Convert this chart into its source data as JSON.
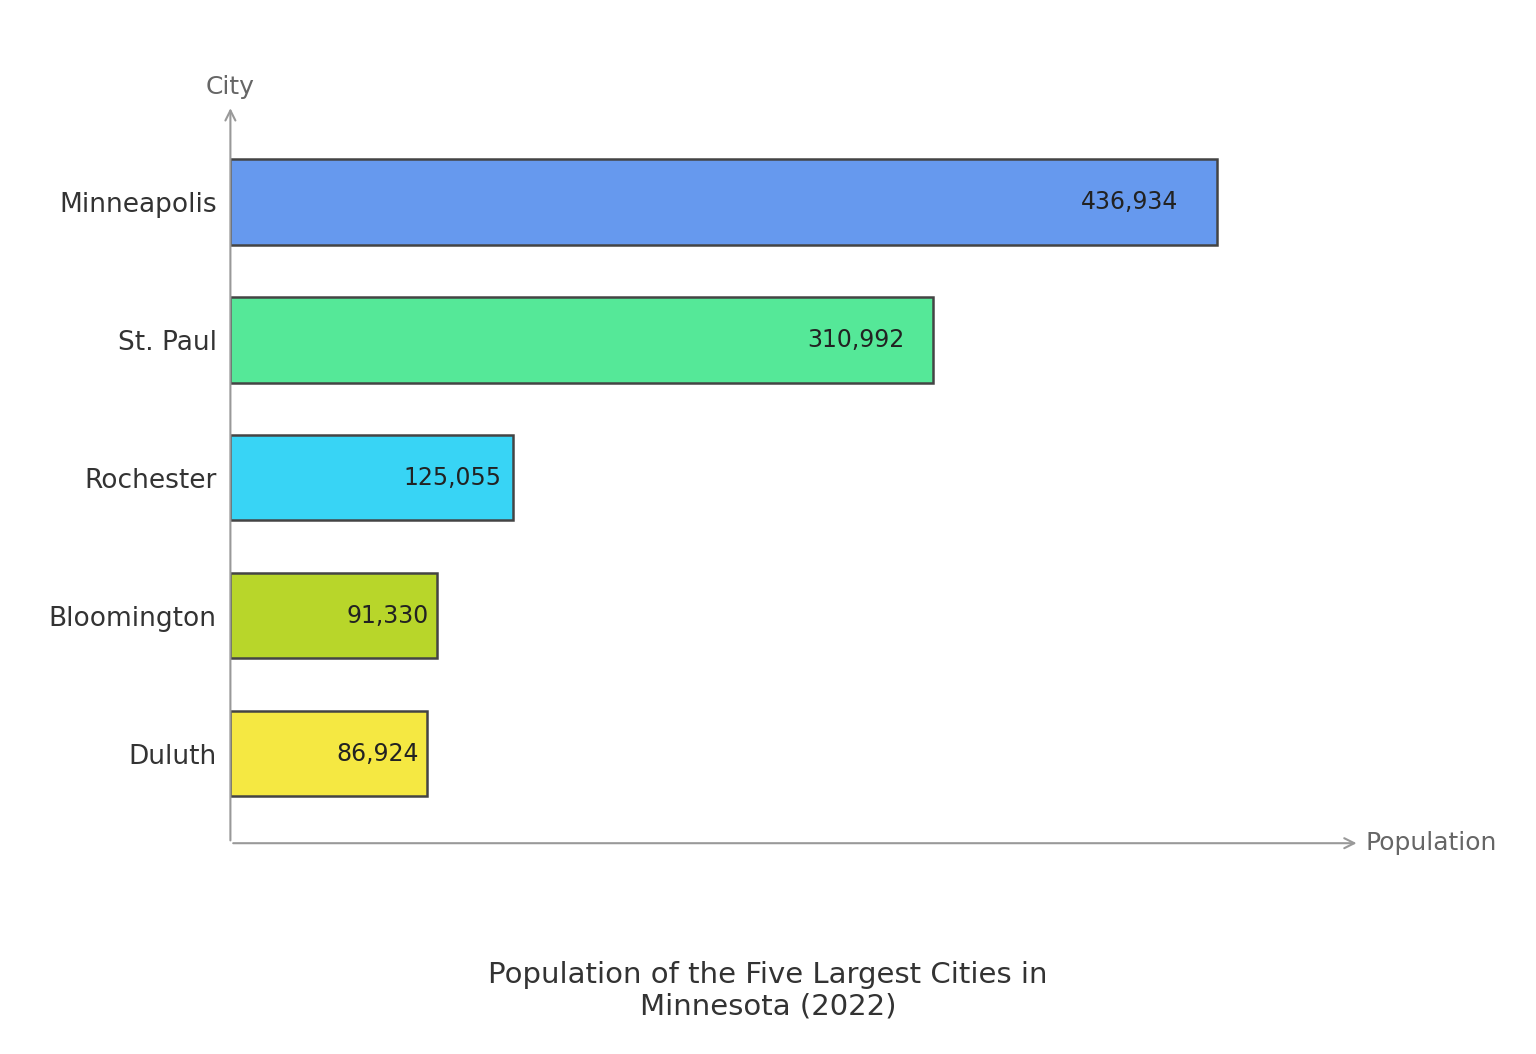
{
  "cities": [
    "Duluth",
    "Bloomington",
    "Rochester",
    "St. Paul",
    "Minneapolis"
  ],
  "populations": [
    86924,
    91330,
    125055,
    310992,
    436934
  ],
  "labels": [
    "86,924",
    "91,330",
    "125,055",
    "310,992",
    "436,934"
  ],
  "bar_colors": [
    "#f5e842",
    "#b8d62a",
    "#38d4f5",
    "#55e898",
    "#6699ee"
  ],
  "bar_edge_colors": [
    "#444444",
    "#444444",
    "#444444",
    "#444444",
    "#444444"
  ],
  "xlabel": "Population",
  "ylabel": "City",
  "title": "Population of the Five Largest Cities in\nMinnesota (2022)",
  "title_fontsize": 21,
  "label_fontsize": 17,
  "tick_fontsize": 19,
  "axis_label_fontsize": 18,
  "background_color": "#ffffff",
  "xlim": [
    0,
    510000
  ],
  "bar_height": 0.62
}
